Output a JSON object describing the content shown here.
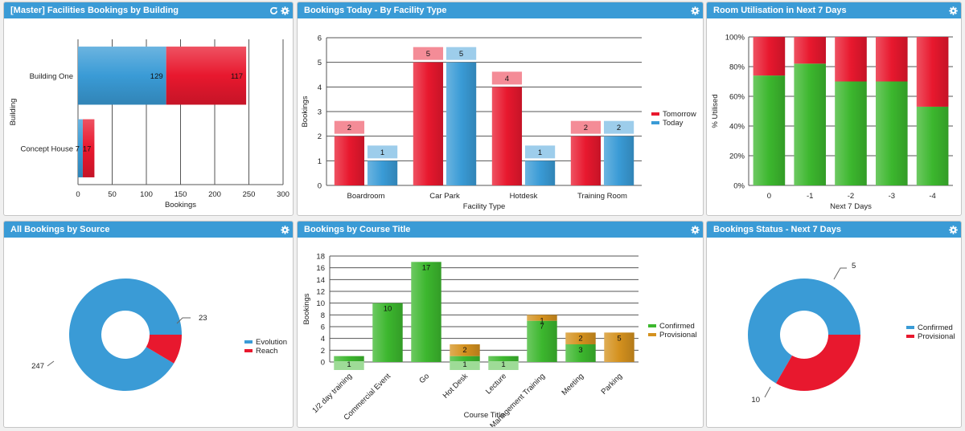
{
  "colors": {
    "header": "#3a9bd6",
    "red": "#e8182e",
    "blue": "#3a9bd6",
    "green": "#3cb72e",
    "orange": "#d4911e",
    "grid": "#555555"
  },
  "panels": [
    {
      "title": "[Master] Facilities Bookings by Building",
      "icons": [
        "refresh-icon",
        "gear-icon"
      ]
    },
    {
      "title": "Bookings Today - By Facility Type",
      "icons": [
        "gear-icon"
      ]
    },
    {
      "title": "Room Utilisation in Next 7 Days",
      "icons": [
        "gear-icon"
      ]
    },
    {
      "title": "All Bookings by Source",
      "icons": [
        "gear-icon"
      ]
    },
    {
      "title": "Bookings by Course Title",
      "icons": [
        "gear-icon"
      ]
    },
    {
      "title": "Bookings Status - Next 7 Days",
      "icons": [
        "gear-icon"
      ]
    }
  ],
  "chart_data": [
    {
      "type": "bar",
      "orientation": "horizontal",
      "stacked": true,
      "categories": [
        "Building One",
        "Concept House"
      ],
      "series": [
        {
          "name": "",
          "color": "#3a9bd6",
          "values": [
            129,
            7
          ]
        },
        {
          "name": "",
          "color": "#e8182e",
          "values": [
            117,
            17
          ]
        }
      ],
      "xlabel": "Bookings",
      "ylabel": "Building",
      "xlim": [
        0,
        300
      ],
      "xticks": [
        0,
        50,
        100,
        150,
        200,
        250,
        300
      ],
      "grid": true
    },
    {
      "type": "bar",
      "categories": [
        "Boardroom",
        "Car Park",
        "Hotdesk",
        "Training Room"
      ],
      "series": [
        {
          "name": "Tomorrow",
          "color": "#e8182e",
          "values": [
            2,
            5,
            4,
            2
          ]
        },
        {
          "name": "Today",
          "color": "#3a9bd6",
          "values": [
            1,
            5,
            1,
            2
          ]
        }
      ],
      "xlabel": "Facility Type",
      "ylabel": "Bookings",
      "ylim": [
        0,
        6
      ],
      "yticks": [
        0,
        1,
        2,
        3,
        4,
        5,
        6
      ],
      "legend": "right",
      "grid": true
    },
    {
      "type": "bar",
      "stacked": true,
      "categories": [
        "0",
        "-1",
        "-2",
        "-3",
        "-4"
      ],
      "series": [
        {
          "name": "",
          "color": "#3cb72e",
          "values": [
            74,
            82,
            70,
            70,
            53
          ]
        },
        {
          "name": "",
          "color": "#e8182e",
          "values": [
            26,
            18,
            30,
            30,
            47
          ]
        }
      ],
      "xlabel": "Next 7 Days",
      "ylabel": "% Utilised",
      "ylim": [
        0,
        100
      ],
      "yticks": [
        "0%",
        "20%",
        "40%",
        "60%",
        "80%",
        "100%"
      ],
      "grid": true
    },
    {
      "type": "pie",
      "donut": true,
      "slices": [
        {
          "name": "Evolution",
          "color": "#3a9bd6",
          "value": 247
        },
        {
          "name": "Reach",
          "color": "#e8182e",
          "value": 23
        }
      ],
      "legend": "right"
    },
    {
      "type": "bar",
      "stacked": true,
      "categories": [
        "1/2 day training",
        "Commercial Event",
        "Go",
        "Hot Desk",
        "Lecture",
        "Management Training",
        "Meeting",
        "Parking"
      ],
      "series": [
        {
          "name": "Confirmed",
          "color": "#3cb72e",
          "values": [
            1,
            10,
            17,
            1,
            1,
            7,
            3,
            0
          ]
        },
        {
          "name": "Provisional",
          "color": "#d4911e",
          "values": [
            0,
            0,
            0,
            2,
            0,
            1,
            2,
            5
          ]
        }
      ],
      "xlabel": "Course Title",
      "ylabel": "Bookings",
      "ylim": [
        0,
        18
      ],
      "yticks": [
        0,
        2,
        4,
        6,
        8,
        10,
        12,
        14,
        16,
        18
      ],
      "legend": "right",
      "grid": true
    },
    {
      "type": "pie",
      "donut": true,
      "slices": [
        {
          "name": "Confirmed",
          "color": "#3a9bd6",
          "value": 10
        },
        {
          "name": "Provisional",
          "color": "#e8182e",
          "value": 5
        }
      ],
      "legend": "right"
    }
  ]
}
